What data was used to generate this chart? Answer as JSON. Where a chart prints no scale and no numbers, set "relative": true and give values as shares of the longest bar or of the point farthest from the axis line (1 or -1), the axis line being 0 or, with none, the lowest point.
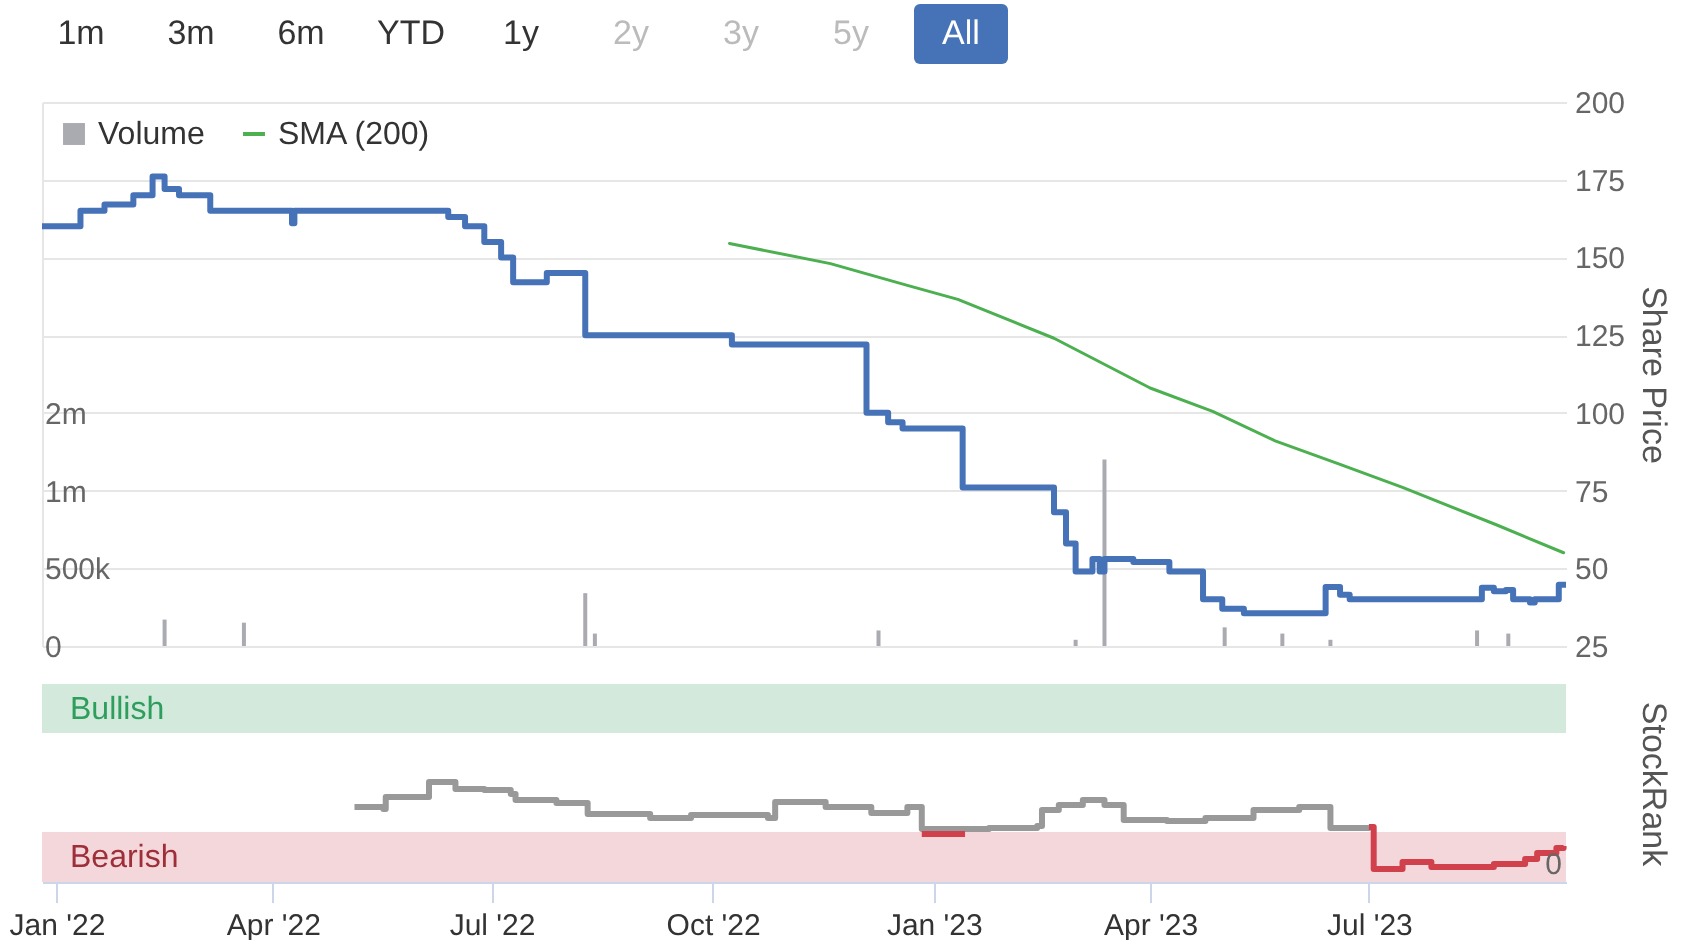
{
  "chart_data": [
    {
      "type": "step",
      "annotations": [
        "1m",
        "3m",
        "6m",
        "YTD",
        "1y",
        "2y",
        "3y",
        "5y",
        "All"
      ],
      "legend": "top left",
      "grid": "y2",
      "tick_labels": [
        "y",
        "y2"
      ],
      "xlim": [
        "2021-12-26",
        "2023-09-21"
      ],
      "y2lim": [
        25,
        200
      ],
      "y2ticks": [
        25,
        50,
        75,
        100,
        125,
        150,
        175,
        200
      ],
      "y2label": "Share Price",
      "ylim": [
        0,
        3500000
      ],
      "yticks": [
        0,
        {
          "value": 500000,
          "label": "500k"
        },
        {
          "value": 1000000,
          "label": "1m"
        },
        {
          "value": 1500000,
          "label": "2m"
        }
      ],
      "series": [
        {
          "type": "bar",
          "name": "Volume",
          "color": "#a9abb1",
          "x": [
            "2022-02-15",
            "2022-03-20",
            "2022-08-09",
            "2022-08-13",
            "2022-12-09",
            "2023-03-01",
            "2023-03-13",
            "2023-05-02",
            "2023-05-26",
            "2023-06-15",
            "2023-08-15",
            "2023-08-28"
          ],
          "values": [
            170000,
            150000,
            340000,
            80000,
            100000,
            40000,
            1200000,
            120000,
            80000,
            40000,
            100000,
            80000
          ]
        },
        {
          "color": "#4672b8",
          "axis": "y2",
          "x": [
            "2021-12-26",
            "2022-01-11",
            "2022-01-21",
            "2022-02-02",
            "2022-02-10",
            "2022-02-15",
            "2022-02-21",
            "2022-03-06",
            "2022-04-09",
            "2022-04-10",
            "2022-06-13",
            "2022-06-20",
            "2022-06-28",
            "2022-07-05",
            "2022-07-10",
            "2022-07-24",
            "2022-08-09",
            "2022-10-09",
            "2022-12-04",
            "2022-12-13",
            "2022-12-19",
            "2023-01-13",
            "2023-02-20",
            "2023-02-25",
            "2023-03-01",
            "2023-03-08",
            "2023-03-11",
            "2023-03-13",
            "2023-03-25",
            "2023-04-09",
            "2023-04-23",
            "2023-05-01",
            "2023-05-10",
            "2023-06-13",
            "2023-06-19",
            "2023-06-23",
            "2023-08-17",
            "2023-08-22",
            "2023-08-27",
            "2023-08-30",
            "2023-09-06",
            "2023-09-08",
            "2023-09-18",
            "2023-09-21"
          ],
          "values": [
            160,
            165,
            167,
            170,
            176,
            172,
            170,
            165,
            161,
            165,
            163,
            160,
            155,
            150,
            142,
            145,
            125,
            122,
            100,
            97,
            95,
            76,
            68,
            58,
            49,
            53,
            49,
            53,
            52,
            49,
            40,
            37,
            35.5,
            44,
            41.5,
            40,
            43.7,
            42.6,
            43,
            40,
            39,
            40,
            44.7,
            44.7
          ]
        },
        {
          "type": "line",
          "name": "SMA (200)",
          "color": "#4caf50",
          "axis": "y2",
          "x": [
            "2022-10-08",
            "2022-11-19",
            "2022-12-21",
            "2023-01-11",
            "2023-02-20",
            "2023-04-01",
            "2023-04-27",
            "2023-05-23",
            "2023-06-19",
            "2023-07-15",
            "2023-08-23",
            "2023-09-20"
          ],
          "values": [
            154.5,
            148,
            141,
            136.5,
            124,
            108,
            100.5,
            91,
            83.4,
            76,
            64,
            55
          ]
        }
      ]
    },
    {
      "type": "step",
      "relative": true,
      "annotations": [
        "0"
      ],
      "xlim": [
        "2021-12-26",
        "2023-09-21"
      ],
      "xticks": [
        {
          "value": "2022-01-01",
          "label": "Jan '22"
        },
        {
          "value": "2022-04-01",
          "label": "Apr '22"
        },
        {
          "value": "2022-07-01",
          "label": "Jul '22"
        },
        {
          "value": "2022-10-01",
          "label": "Oct '22"
        },
        {
          "value": "2023-01-01",
          "label": "Jan '23"
        },
        {
          "value": "2023-04-01",
          "label": "Apr '23"
        },
        {
          "value": "2023-07-01",
          "label": "Jul '23"
        }
      ],
      "ylabel": "StockRank",
      "bands": [
        {
          "axis": "y",
          "from": 1.49,
          "to": 1.98,
          "label": "Bullish",
          "color": "#d3e9dc"
        },
        {
          "axis": "y",
          "from": 0,
          "to": 0.5,
          "label": "Bearish",
          "color": "#f4d7da"
        }
      ],
      "series": [
        {
          "color": "#999999",
          "x": [
            "2022-05-05",
            "2022-05-17",
            "2022-05-18",
            "2022-06-04",
            "2022-06-05",
            "2022-06-16",
            "2022-06-28",
            "2022-07-09",
            "2022-07-11",
            "2022-07-28",
            "2022-08-10",
            "2022-09-05",
            "2022-09-22",
            "2022-10-24",
            "2022-10-27",
            "2022-11-15",
            "2022-11-17",
            "2022-12-06",
            "2022-12-21",
            "2022-12-27",
            "2023-01-14",
            "2023-01-24",
            "2023-02-13",
            "2023-02-15",
            "2023-02-22",
            "2023-03-04",
            "2023-03-13",
            "2023-03-21",
            "2023-04-08",
            "2023-04-24",
            "2023-05-14",
            "2023-06-02",
            "2023-06-15",
            "2023-07-01"
          ],
          "values": [
            0.75,
            0.73,
            0.85,
            0.85,
            1,
            0.93,
            0.92,
            0.88,
            0.82,
            0.79,
            0.68,
            0.64,
            0.67,
            0.64,
            0.8,
            0.8,
            0.75,
            0.69,
            0.75,
            0.53,
            0.53,
            0.54,
            0.56,
            0.72,
            0.77,
            0.82,
            0.77,
            0.62,
            0.61,
            0.64,
            0.72,
            0.75,
            0.54,
            0.55
          ]
        },
        {
          "color": "#d0414b",
          "x": [
            "2022-12-27",
            "2023-01-14",
            "2023-01-15",
            "2023-07-01",
            "2023-07-03",
            "2023-07-15",
            "2023-07-27",
            "2023-08-22",
            "2023-09-04",
            "2023-09-09",
            "2023-09-17",
            "2023-09-20"
          ],
          "values": [
            0.48,
            0.48,
            null,
            0.55,
            0.13,
            0.2,
            0.15,
            0.18,
            0.23,
            0.29,
            0.34,
            0.36
          ]
        }
      ]
    }
  ]
}
